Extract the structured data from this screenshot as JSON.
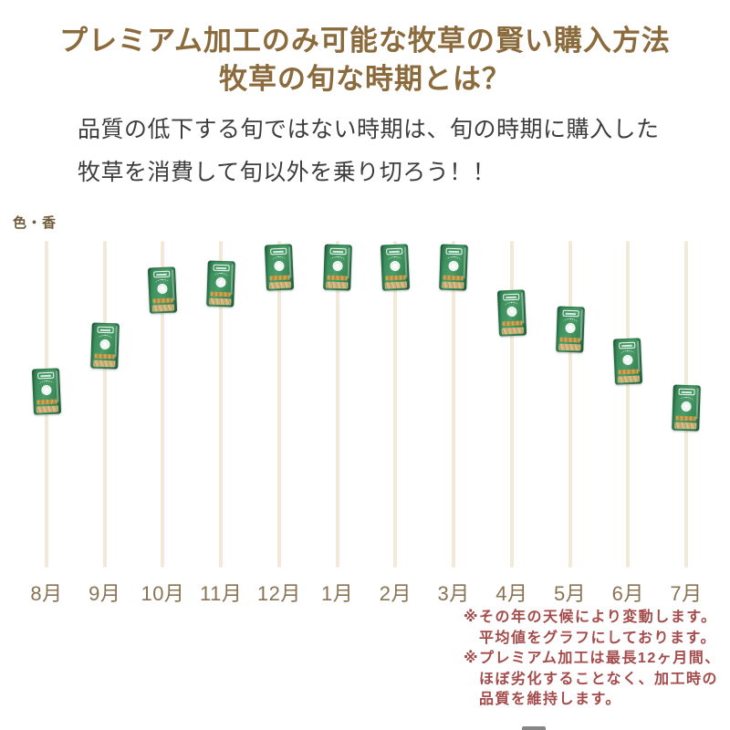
{
  "header": {
    "title_line1": "プレミアム加工のみ可能な牧草の賢い購入方法",
    "title_line2": "牧草の旬な時期とは？",
    "subtitle_line1": "品質の低下する旬ではない時期は、旬の時期に購入した",
    "subtitle_line2": "牧草を消費して旬以外を乗り切ろう！！"
  },
  "chart_data": {
    "type": "scatter",
    "title": "プレミアム加工のみ可能な牧草の賢い購入方法 牧草の旬な時期とは？",
    "ylabel": "色・香",
    "xlabel": "",
    "categories": [
      "8月",
      "9月",
      "10月",
      "11月",
      "12月",
      "1月",
      "2月",
      "3月",
      "4月",
      "5月",
      "6月",
      "7月"
    ],
    "values": [
      54,
      68,
      85,
      87,
      92,
      92,
      92,
      92,
      78,
      73,
      63,
      49
    ],
    "ylim": [
      0,
      100
    ],
    "value_note": "relative quality level (no numeric axis shown); peak season 12月〜3月, lowest 7月・8月",
    "marker": "green-hay-package",
    "grid": "vertical month lines, beige",
    "legend": "none"
  },
  "notes": {
    "lines": [
      {
        "text": "※その年の天候により変動します。",
        "indent": false
      },
      {
        "text": "平均値をグラフにしております。",
        "indent": true
      },
      {
        "text": "※プレミアム加工は最長12ヶ月間、",
        "indent": false
      },
      {
        "text": "ほぼ劣化することなく、加工時の",
        "indent": true
      },
      {
        "text": "品質を維持します。",
        "indent": true
      }
    ]
  },
  "colors": {
    "title_brown": "#8b6a3c",
    "subtitle_gray": "#3d3d3d",
    "axis_label_brown": "#6f5a39",
    "month_label_brown": "#8a7353",
    "grid_line_beige": "#f2e9d8",
    "note_red": "#a34a4a",
    "package_green": "#3c8f5d",
    "package_green_dark": "#2c6e46",
    "package_gold": "#c9a554",
    "hay_tan": "#c9b179",
    "background": "#ffffff"
  }
}
